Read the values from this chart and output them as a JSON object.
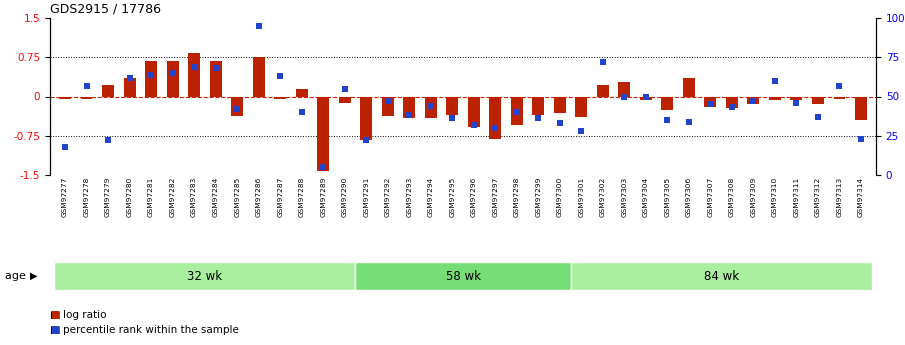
{
  "title": "GDS2915 / 17786",
  "samples": [
    "GSM97277",
    "GSM97278",
    "GSM97279",
    "GSM97280",
    "GSM97281",
    "GSM97282",
    "GSM97283",
    "GSM97284",
    "GSM97285",
    "GSM97286",
    "GSM97287",
    "GSM97288",
    "GSM97289",
    "GSM97290",
    "GSM97291",
    "GSM97292",
    "GSM97293",
    "GSM97294",
    "GSM97295",
    "GSM97296",
    "GSM97297",
    "GSM97298",
    "GSM97299",
    "GSM97300",
    "GSM97301",
    "GSM97302",
    "GSM97303",
    "GSM97304",
    "GSM97305",
    "GSM97306",
    "GSM97307",
    "GSM97308",
    "GSM97309",
    "GSM97310",
    "GSM97311",
    "GSM97312",
    "GSM97313",
    "GSM97314"
  ],
  "log_ratio": [
    -0.05,
    -0.05,
    0.22,
    0.35,
    0.68,
    0.67,
    0.83,
    0.68,
    -0.37,
    0.75,
    -0.05,
    0.15,
    -1.42,
    -0.12,
    -0.83,
    -0.38,
    -0.42,
    -0.42,
    -0.35,
    -0.58,
    -0.82,
    -0.55,
    -0.35,
    -0.32,
    -0.4,
    0.22,
    0.28,
    -0.06,
    -0.25,
    0.35,
    -0.2,
    -0.22,
    -0.15,
    -0.06,
    -0.06,
    -0.15,
    -0.05,
    -0.45
  ],
  "percentile": [
    18,
    57,
    22,
    62,
    64,
    65,
    69,
    68,
    42,
    95,
    63,
    40,
    5,
    55,
    22,
    47,
    38,
    44,
    36,
    32,
    30,
    40,
    36,
    33,
    28,
    72,
    50,
    50,
    35,
    34,
    45,
    43,
    47,
    60,
    46,
    37,
    57,
    23
  ],
  "groups": [
    {
      "label": "32 wk",
      "start": 0,
      "end": 14
    },
    {
      "label": "58 wk",
      "start": 14,
      "end": 24
    },
    {
      "label": "84 wk",
      "start": 24,
      "end": 38
    }
  ],
  "group_colors": [
    "#aaeea0",
    "#77dd77",
    "#aaeea0"
  ],
  "ylim": [
    -1.5,
    1.5
  ],
  "bar_color": "#BB2200",
  "dot_color": "#2244CC",
  "legend_items": [
    "log ratio",
    "percentile rank within the sample"
  ]
}
